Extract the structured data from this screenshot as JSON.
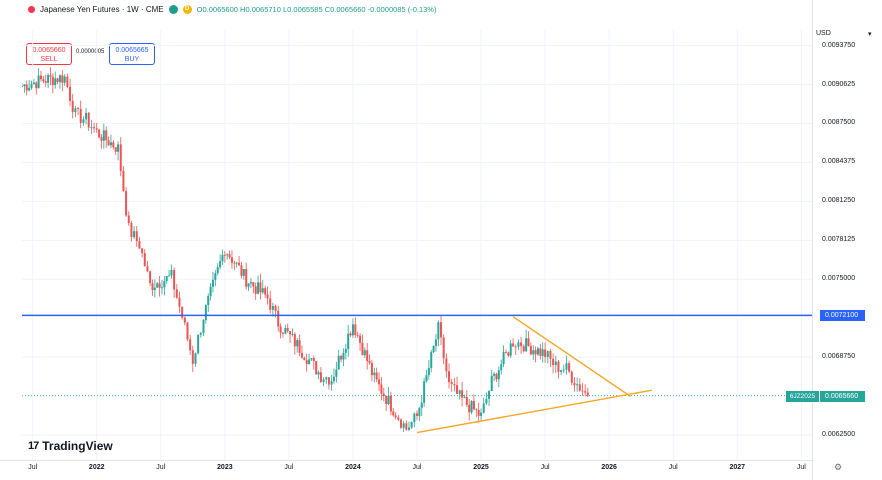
{
  "header": {
    "symbol_title": "Japanese Yen Futures · 1W · CME",
    "badge": "D",
    "open_label": "O",
    "open": "0.0065600",
    "high_label": "H",
    "high": "0.0065710",
    "low_label": "L",
    "low": "0.0065585",
    "close_label": "C",
    "close": "0.0065660",
    "change": "-0.0000085 (-0.13%)"
  },
  "trade": {
    "sell_price": "0.0065660",
    "sell_label": "SELL",
    "spread": "0.0000005",
    "buy_price": "0.0065665",
    "buy_label": "BUY"
  },
  "price_scale": {
    "currency": "USD",
    "ticks": [
      "0.0093750",
      "0.0090625",
      "0.0087500",
      "0.0084375",
      "0.0081250",
      "0.0078125",
      "0.0075000",
      "0.0068750",
      "0.0062500"
    ],
    "line_label": "0.0072100",
    "last_label": "0.0065660",
    "symbol_tag": "6JZ2025"
  },
  "time_axis": {
    "ticks": [
      {
        "label": "Jul",
        "year": false
      },
      {
        "label": "2022",
        "year": true
      },
      {
        "label": "Jul",
        "year": false
      },
      {
        "label": "2023",
        "year": true
      },
      {
        "label": "Jul",
        "year": false
      },
      {
        "label": "2024",
        "year": true
      },
      {
        "label": "Jul",
        "year": false
      },
      {
        "label": "2025",
        "year": true
      },
      {
        "label": "Jul",
        "year": false
      },
      {
        "label": "2026",
        "year": true
      },
      {
        "label": "Jul",
        "year": false
      },
      {
        "label": "2027",
        "year": true
      },
      {
        "label": "Jul",
        "year": false
      }
    ]
  },
  "branding": {
    "logo_mark": "17",
    "name": "TradingView"
  },
  "colors": {
    "up": "#26a69a",
    "down": "#ef5350",
    "horizontal_line": "#2962ff",
    "trendline": "#f5a623",
    "grid": "#f0f3fa"
  },
  "chart_data": {
    "type": "candlestick",
    "title": "Japanese Yen Futures · 1W · CME",
    "y_range": [
      0.00605,
      0.0095
    ],
    "x_range": [
      "2021-06",
      "2027-08"
    ],
    "weekly_close_path": [
      [
        "2021-06",
        0.00905
      ],
      [
        "2021-08",
        0.0091
      ],
      [
        "2021-10",
        0.00912
      ],
      [
        "2021-11",
        0.00882
      ],
      [
        "2021-12",
        0.00878
      ],
      [
        "2022-01",
        0.00868
      ],
      [
        "2022-03",
        0.00855
      ],
      [
        "2022-04",
        0.0079
      ],
      [
        "2022-05",
        0.00778
      ],
      [
        "2022-06",
        0.00745
      ],
      [
        "2022-08",
        0.00752
      ],
      [
        "2022-09",
        0.0072
      ],
      [
        "2022-10",
        0.00685
      ],
      [
        "2022-11",
        0.0072
      ],
      [
        "2023-01",
        0.00775
      ],
      [
        "2023-03",
        0.0075
      ],
      [
        "2023-05",
        0.00735
      ],
      [
        "2023-06",
        0.00715
      ],
      [
        "2023-08",
        0.00695
      ],
      [
        "2023-10",
        0.00673
      ],
      [
        "2023-11",
        0.0067
      ],
      [
        "2024-01",
        0.00715
      ],
      [
        "2024-03",
        0.0067
      ],
      [
        "2024-05",
        0.00643
      ],
      [
        "2024-06",
        0.0063
      ],
      [
        "2024-07",
        0.0064
      ],
      [
        "2024-09",
        0.0071
      ],
      [
        "2024-10",
        0.00665
      ],
      [
        "2024-11",
        0.00655
      ],
      [
        "2025-01",
        0.0064
      ],
      [
        "2025-02",
        0.00668
      ],
      [
        "2025-04",
        0.007
      ],
      [
        "2025-05",
        0.00698
      ],
      [
        "2025-07",
        0.0069
      ],
      [
        "2025-08",
        0.0068
      ],
      [
        "2025-09",
        0.00678
      ],
      [
        "2025-10",
        0.00666
      ],
      [
        "2025-11",
        0.006566
      ]
    ],
    "horizontal_level": 0.00721,
    "last_price": 0.006566,
    "trendlines": [
      {
        "name": "",
        "from": [
          "2024-07",
          0.00627
        ],
        "to": [
          "2026-05",
          0.00661
        ]
      },
      {
        "name": "",
        "from": [
          "2025-04",
          0.0072
        ],
        "to": [
          "2026-03",
          0.00656
        ]
      }
    ]
  }
}
